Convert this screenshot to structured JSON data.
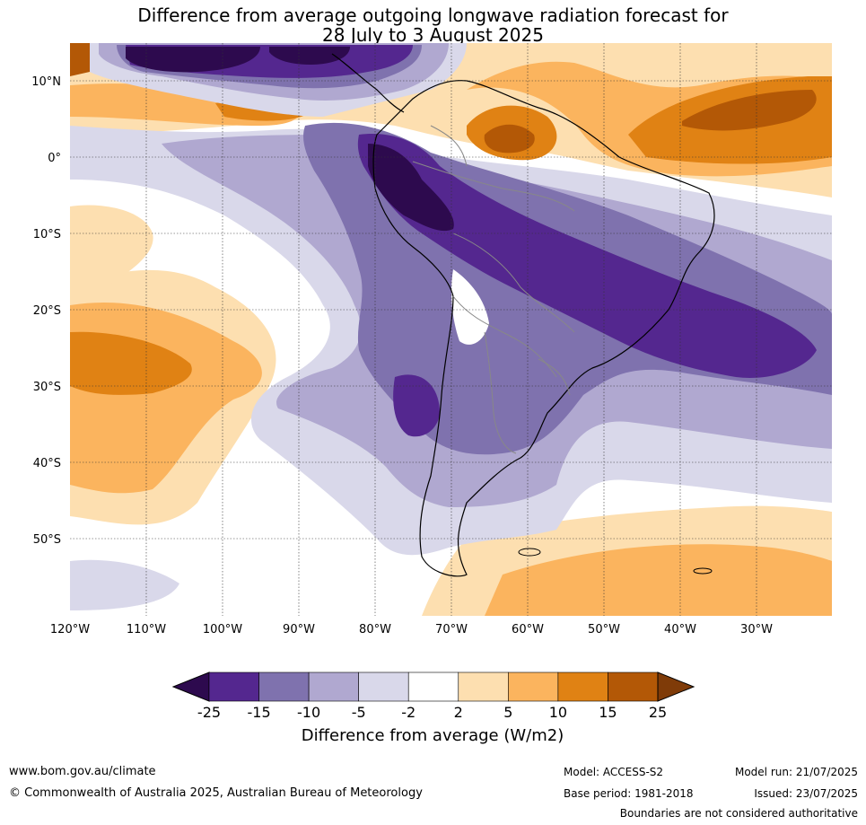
{
  "title": {
    "line1": "Difference from average outgoing longwave radiation forecast for",
    "line2": "28 July to 3 August 2025"
  },
  "map": {
    "region": "South America",
    "lat_ticks": [
      "10°N",
      "0°",
      "10°S",
      "20°S",
      "30°S",
      "40°S",
      "50°S"
    ],
    "lon_ticks": [
      "120°W",
      "110°W",
      "100°W",
      "90°W",
      "80°W",
      "70°W",
      "60°W",
      "50°W",
      "40°W",
      "30°W"
    ]
  },
  "legend": {
    "levels": [
      "-25",
      "-15",
      "-10",
      "-5",
      "-2",
      "2",
      "5",
      "10",
      "15",
      "25"
    ],
    "colors": [
      "#2d0a4e",
      "#54278f",
      "#7f72ae",
      "#b0a8d0",
      "#d9d8ea",
      "#ffffff",
      "#fddfb0",
      "#fbb45e",
      "#e08214",
      "#b35806",
      "#7f3b08"
    ],
    "label": "Difference from average (W/m2)"
  },
  "footer": {
    "url": "www.bom.gov.au/climate",
    "copyright": "© Commonwealth of Australia 2025, Australian Bureau of Meteorology",
    "model": "Model: ACCESS-S2",
    "base_period": "Base period: 1981-2018",
    "model_run": "Model run: 21/07/2025",
    "issued": "Issued: 23/07/2025",
    "disclaimer": "Boundaries are not considered authoritative"
  }
}
